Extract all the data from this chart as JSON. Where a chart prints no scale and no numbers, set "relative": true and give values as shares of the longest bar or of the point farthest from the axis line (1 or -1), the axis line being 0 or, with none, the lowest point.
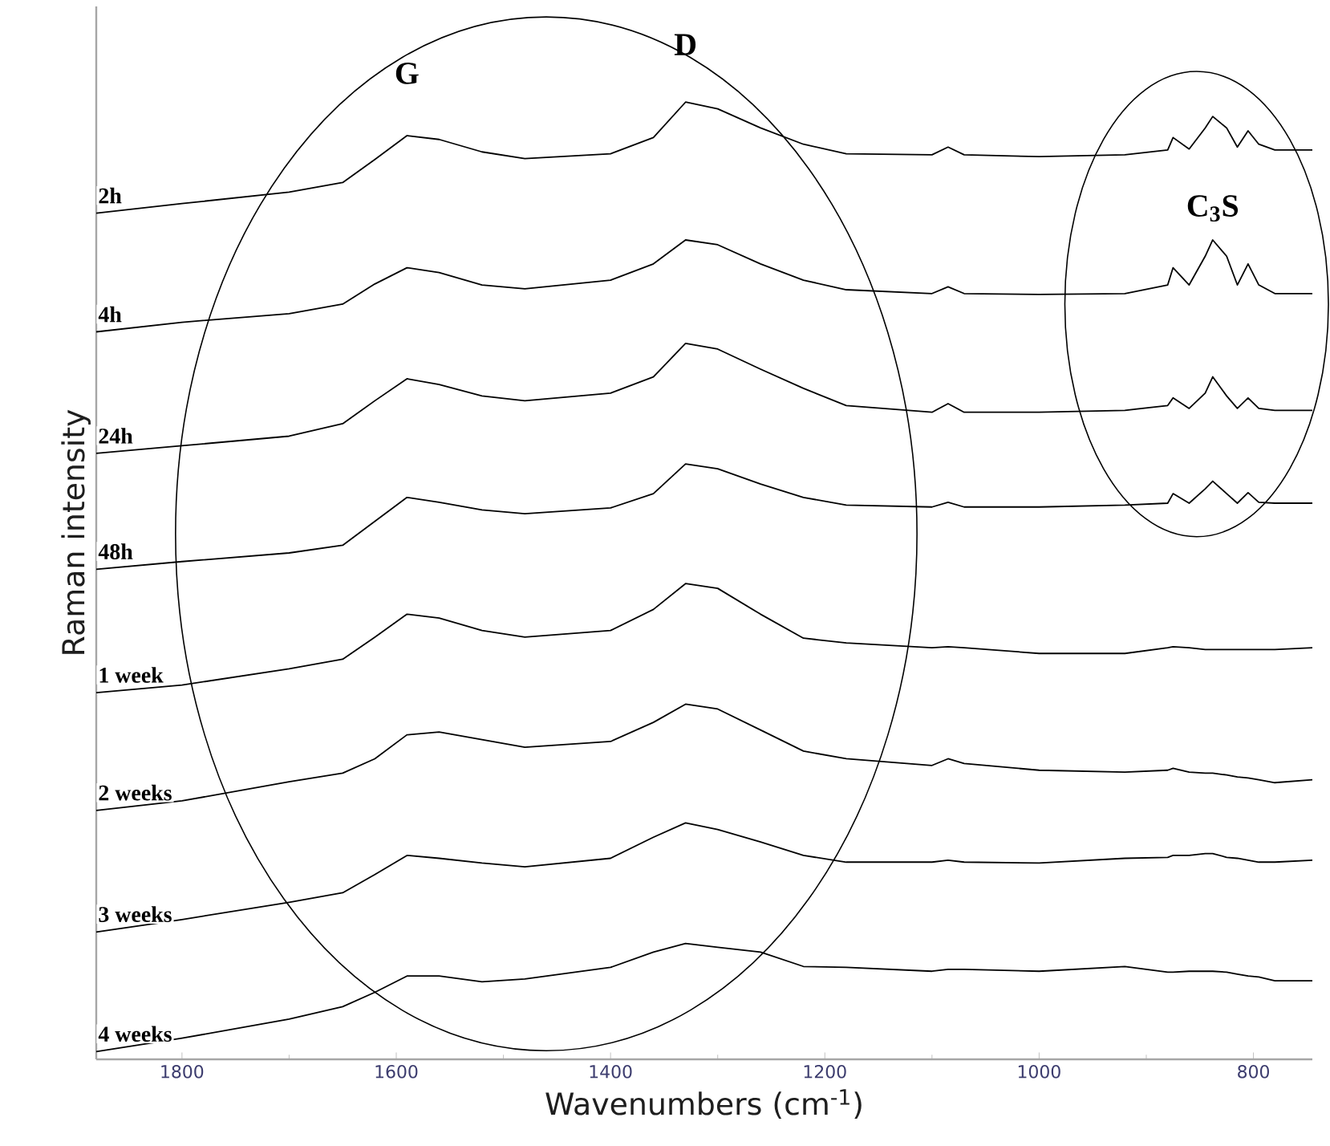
{
  "chart_data": {
    "type": "line",
    "relative": true,
    "xlabel": "Wavenumbers (cm$^{-1}$)",
    "ylabel": "Raman intensity",
    "xlim": [
      1880,
      745
    ],
    "xticks": [
      1800,
      1600,
      1400,
      1200,
      1000,
      800
    ],
    "marker": "none",
    "line_style": "solid",
    "x": [
      1880,
      1800,
      1700,
      1650,
      1620,
      1590,
      1560,
      1520,
      1480,
      1400,
      1360,
      1330,
      1300,
      1260,
      1220,
      1180,
      1100,
      1085,
      1070,
      1000,
      920,
      880,
      875,
      860,
      845,
      838,
      825,
      815,
      805,
      795,
      780,
      745
    ],
    "series": [
      {
        "name": "2h",
        "color": "#000000",
        "values": [
          0.884,
          0.894,
          0.906,
          0.916,
          0.94,
          0.965,
          0.961,
          0.948,
          0.941,
          0.946,
          0.963,
          1.0,
          0.993,
          0.973,
          0.956,
          0.946,
          0.945,
          0.953,
          0.945,
          0.943,
          0.945,
          0.95,
          0.963,
          0.951,
          0.973,
          0.985,
          0.973,
          0.953,
          0.97,
          0.956,
          0.95,
          0.95
        ]
      },
      {
        "name": "4h",
        "color": "#000000",
        "values": [
          0.76,
          0.77,
          0.779,
          0.789,
          0.81,
          0.827,
          0.822,
          0.809,
          0.805,
          0.814,
          0.831,
          0.856,
          0.851,
          0.831,
          0.814,
          0.804,
          0.8,
          0.807,
          0.8,
          0.799,
          0.8,
          0.809,
          0.827,
          0.809,
          0.839,
          0.856,
          0.839,
          0.809,
          0.831,
          0.809,
          0.8,
          0.8
        ]
      },
      {
        "name": "24h",
        "color": "#000000",
        "values": [
          0.633,
          0.641,
          0.651,
          0.664,
          0.688,
          0.711,
          0.705,
          0.693,
          0.688,
          0.696,
          0.713,
          0.748,
          0.742,
          0.721,
          0.701,
          0.683,
          0.676,
          0.685,
          0.676,
          0.676,
          0.678,
          0.683,
          0.691,
          0.68,
          0.696,
          0.713,
          0.693,
          0.68,
          0.691,
          0.68,
          0.678,
          0.678
        ]
      },
      {
        "name": "48h",
        "color": "#000000",
        "values": [
          0.512,
          0.52,
          0.529,
          0.537,
          0.562,
          0.587,
          0.582,
          0.574,
          0.57,
          0.576,
          0.591,
          0.622,
          0.617,
          0.601,
          0.587,
          0.579,
          0.577,
          0.582,
          0.577,
          0.577,
          0.579,
          0.581,
          0.591,
          0.581,
          0.596,
          0.604,
          0.591,
          0.581,
          0.592,
          0.582,
          0.581,
          0.581
        ]
      },
      {
        "name": "1 week",
        "color": "#000000",
        "values": [
          0.383,
          0.391,
          0.408,
          0.418,
          0.441,
          0.465,
          0.461,
          0.448,
          0.441,
          0.448,
          0.47,
          0.497,
          0.492,
          0.465,
          0.44,
          0.435,
          0.43,
          0.431,
          0.43,
          0.424,
          0.424,
          0.43,
          0.431,
          0.43,
          0.428,
          0.428,
          0.428,
          0.428,
          0.428,
          0.428,
          0.428,
          0.43
        ]
      },
      {
        "name": "2 weeks",
        "color": "#000000",
        "values": [
          0.26,
          0.27,
          0.29,
          0.299,
          0.314,
          0.339,
          0.342,
          0.334,
          0.326,
          0.332,
          0.352,
          0.371,
          0.366,
          0.344,
          0.322,
          0.314,
          0.307,
          0.314,
          0.309,
          0.302,
          0.3,
          0.302,
          0.304,
          0.3,
          0.299,
          0.299,
          0.297,
          0.295,
          0.294,
          0.292,
          0.289,
          0.292
        ]
      },
      {
        "name": "3 weeks",
        "color": "#000000",
        "values": [
          0.133,
          0.146,
          0.164,
          0.174,
          0.193,
          0.213,
          0.21,
          0.205,
          0.201,
          0.21,
          0.232,
          0.247,
          0.24,
          0.227,
          0.213,
          0.206,
          0.206,
          0.208,
          0.206,
          0.205,
          0.21,
          0.211,
          0.213,
          0.213,
          0.215,
          0.215,
          0.211,
          0.21,
          0.208,
          0.206,
          0.206,
          0.208
        ]
      },
      {
        "name": "4 weeks",
        "color": "#000000",
        "values": [
          0.008,
          0.022,
          0.042,
          0.055,
          0.07,
          0.087,
          0.087,
          0.081,
          0.084,
          0.096,
          0.112,
          0.121,
          0.117,
          0.112,
          0.097,
          0.096,
          0.092,
          0.094,
          0.094,
          0.092,
          0.097,
          0.091,
          0.091,
          0.092,
          0.092,
          0.092,
          0.091,
          0.089,
          0.087,
          0.086,
          0.082,
          0.082
        ]
      }
    ],
    "annotations": [
      "G",
      "D",
      "C$_{3}$S"
    ]
  }
}
